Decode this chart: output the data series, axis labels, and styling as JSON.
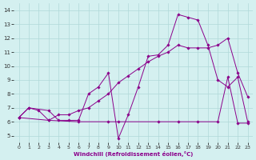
{
  "xlabel": "Windchill (Refroidissement éolien,°C)",
  "bg_color": "#d4f0f0",
  "grid_color": "#b0d8d8",
  "line_color": "#8b008b",
  "xlim": [
    -0.5,
    23.5
  ],
  "ylim": [
    4.5,
    14.5
  ],
  "xticks": [
    0,
    1,
    2,
    3,
    4,
    5,
    6,
    7,
    8,
    9,
    10,
    11,
    12,
    13,
    14,
    15,
    16,
    17,
    18,
    19,
    20,
    21,
    22,
    23
  ],
  "yticks": [
    5,
    6,
    7,
    8,
    9,
    10,
    11,
    12,
    13,
    14
  ],
  "series": [
    {
      "x": [
        0,
        1,
        2,
        3,
        4,
        5,
        6,
        7,
        8,
        9,
        10,
        11,
        12,
        13,
        14,
        15,
        16,
        17,
        18,
        19,
        20,
        21,
        22,
        23
      ],
      "y": [
        6.3,
        7.0,
        6.8,
        6.1,
        6.5,
        6.5,
        6.8,
        7.0,
        7.5,
        8.0,
        8.8,
        9.3,
        9.8,
        10.3,
        10.7,
        11.0,
        11.5,
        11.3,
        11.3,
        11.3,
        11.5,
        12.0,
        9.5,
        7.8
      ]
    },
    {
      "x": [
        0,
        1,
        3,
        4,
        5,
        6,
        7,
        8,
        9,
        10,
        11,
        12,
        13,
        14,
        15,
        16,
        17,
        18,
        19,
        20,
        21,
        22,
        23
      ],
      "y": [
        6.3,
        7.0,
        6.8,
        6.1,
        6.1,
        6.1,
        8.0,
        8.5,
        9.5,
        4.8,
        6.5,
        8.5,
        10.7,
        10.8,
        11.5,
        13.7,
        13.5,
        13.3,
        11.5,
        9.0,
        8.5,
        9.2,
        6.0
      ]
    },
    {
      "x": [
        0,
        3,
        6,
        9,
        10,
        14,
        16,
        18,
        20,
        21,
        22,
        23
      ],
      "y": [
        6.3,
        6.1,
        6.0,
        6.0,
        6.0,
        6.0,
        6.0,
        6.0,
        6.0,
        9.2,
        5.9,
        5.9
      ]
    }
  ]
}
